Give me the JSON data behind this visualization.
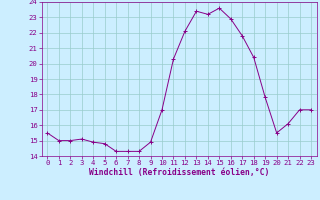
{
  "x": [
    0,
    1,
    2,
    3,
    4,
    5,
    6,
    7,
    8,
    9,
    10,
    11,
    12,
    13,
    14,
    15,
    16,
    17,
    18,
    19,
    20,
    21,
    22,
    23
  ],
  "y": [
    15.5,
    15.0,
    15.0,
    15.1,
    14.9,
    14.8,
    14.3,
    14.3,
    14.3,
    14.9,
    17.0,
    20.3,
    22.1,
    23.4,
    23.2,
    23.6,
    22.9,
    21.8,
    20.4,
    17.8,
    15.5,
    16.1,
    17.0,
    17.0
  ],
  "line_color": "#880088",
  "marker": "+",
  "bg_color": "#cceeff",
  "grid_color": "#99cccc",
  "xlabel": "Windchill (Refroidissement éolien,°C)",
  "xlim": [
    -0.5,
    23.5
  ],
  "ylim": [
    14,
    24
  ],
  "yticks": [
    14,
    15,
    16,
    17,
    18,
    19,
    20,
    21,
    22,
    23,
    24
  ],
  "xticks": [
    0,
    1,
    2,
    3,
    4,
    5,
    6,
    7,
    8,
    9,
    10,
    11,
    12,
    13,
    14,
    15,
    16,
    17,
    18,
    19,
    20,
    21,
    22,
    23
  ],
  "tick_color": "#880088",
  "tick_fontsize": 5.2,
  "xlabel_fontsize": 5.8
}
